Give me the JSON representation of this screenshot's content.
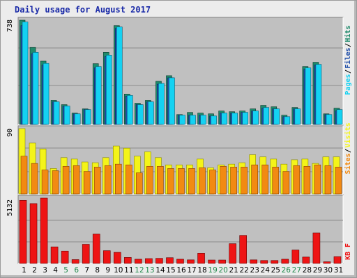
{
  "title": "Daily usage for August 2017",
  "colors": {
    "pages": "#1f8a6b",
    "files": "#1f4ea8",
    "hits": "#14d2f2",
    "visits": "#f4f419",
    "sites": "#f28a12",
    "kbf": "#ee1414",
    "weekend_label": "#1f8a4b",
    "panel_bg": "#c0c0c0"
  },
  "chart_data": [
    {
      "type": "bar",
      "panel": "pages_files_hits",
      "max_label": "738",
      "ylim": [
        0,
        738
      ],
      "legend": [
        "Pages",
        "Files",
        "Hits"
      ],
      "categories": [
        "1",
        "2",
        "3",
        "4",
        "5",
        "6",
        "7",
        "8",
        "9",
        "10",
        "11",
        "12",
        "13",
        "14",
        "15",
        "16",
        "17",
        "18",
        "19",
        "20",
        "21",
        "22",
        "23",
        "24",
        "25",
        "26",
        "27",
        "28",
        "29",
        "30",
        "31"
      ],
      "series": [
        {
          "name": "Pages",
          "values": [
            738,
            545,
            448,
            170,
            140,
            80,
            110,
            430,
            510,
            700,
            215,
            150,
            170,
            305,
            345,
            70,
            85,
            80,
            75,
            95,
            90,
            95,
            110,
            135,
            125,
            65,
            120,
            410,
            440,
            75,
            115
          ]
        },
        {
          "name": "Files",
          "values": [
            700,
            500,
            420,
            160,
            130,
            75,
            105,
            400,
            480,
            680,
            200,
            140,
            160,
            285,
            330,
            65,
            65,
            65,
            60,
            80,
            80,
            85,
            95,
            115,
            110,
            55,
            110,
            390,
            420,
            70,
            95
          ]
        },
        {
          "name": "Hits",
          "values": [
            725,
            510,
            432,
            160,
            130,
            75,
            105,
            410,
            490,
            690,
            205,
            140,
            160,
            290,
            330,
            65,
            65,
            65,
            60,
            80,
            80,
            85,
            95,
            120,
            110,
            55,
            110,
            400,
            425,
            70,
            105
          ]
        }
      ]
    },
    {
      "type": "bar",
      "panel": "visits_sites",
      "max_label": "90",
      "ylim": [
        0,
        90
      ],
      "legend": [
        "Sites",
        "Visits"
      ],
      "categories": [
        "1",
        "2",
        "3",
        "4",
        "5",
        "6",
        "7",
        "8",
        "9",
        "10",
        "11",
        "12",
        "13",
        "14",
        "15",
        "16",
        "17",
        "18",
        "19",
        "20",
        "21",
        "22",
        "23",
        "24",
        "25",
        "26",
        "27",
        "28",
        "29",
        "30",
        "31"
      ],
      "series": [
        {
          "name": "Visits",
          "values": [
            90,
            70,
            62,
            35,
            50,
            48,
            44,
            43,
            50,
            66,
            63,
            52,
            58,
            50,
            40,
            40,
            40,
            48,
            36,
            40,
            41,
            43,
            54,
            51,
            48,
            41,
            47,
            48,
            42,
            51,
            51
          ]
        },
        {
          "name": "Sites",
          "values": [
            52,
            42,
            33,
            32,
            38,
            39,
            31,
            37,
            39,
            41,
            40,
            29,
            38,
            38,
            35,
            35,
            35,
            36,
            33,
            38,
            37,
            37,
            40,
            40,
            37,
            31,
            39,
            38,
            40,
            39,
            37
          ]
        }
      ]
    },
    {
      "type": "bar",
      "panel": "kbf",
      "max_label": "5132",
      "ylim": [
        0,
        5132
      ],
      "legend": [
        "KB F"
      ],
      "categories": [
        "1",
        "2",
        "3",
        "4",
        "5",
        "6",
        "7",
        "8",
        "9",
        "10",
        "11",
        "12",
        "13",
        "14",
        "15",
        "16",
        "17",
        "18",
        "19",
        "20",
        "21",
        "22",
        "23",
        "24",
        "25",
        "26",
        "27",
        "28",
        "29",
        "30",
        "31"
      ],
      "series": [
        {
          "name": "KB F",
          "values": [
            4950,
            4700,
            5132,
            1300,
            970,
            300,
            1500,
            2300,
            1000,
            870,
            470,
            330,
            380,
            400,
            450,
            330,
            280,
            800,
            270,
            270,
            1550,
            2200,
            280,
            230,
            230,
            330,
            1050,
            500,
            2400,
            130,
            530
          ]
        }
      ],
      "weekend_days": [
        5,
        6,
        12,
        13,
        19,
        20,
        26,
        27
      ]
    }
  ]
}
